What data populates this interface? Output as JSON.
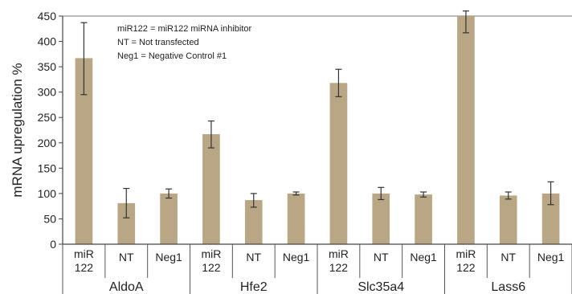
{
  "chart_data": {
    "type": "bar",
    "ylabel": "mRNA upregulation %",
    "ylim": [
      0,
      450
    ],
    "yticks": [
      0,
      50,
      100,
      150,
      200,
      250,
      300,
      350,
      400,
      450
    ],
    "legend_lines": [
      "miR122 = miR122 miRNA inhibitor",
      "NT = Not transfected",
      "Neg1 = Negative Control #1"
    ],
    "legend_position": "top-left",
    "bar_color": "#b8a684",
    "groups": [
      {
        "name": "AldoA",
        "bars": [
          {
            "label": [
              "miR",
              "122"
            ],
            "value": 367,
            "err_low": 295,
            "err_high": 437
          },
          {
            "label": [
              "NT"
            ],
            "value": 81,
            "err_low": 52,
            "err_high": 110
          },
          {
            "label": [
              "Neg1"
            ],
            "value": 100,
            "err_low": 91,
            "err_high": 109
          }
        ]
      },
      {
        "name": "Hfe2",
        "bars": [
          {
            "label": [
              "miR",
              "122"
            ],
            "value": 217,
            "err_low": 190,
            "err_high": 243
          },
          {
            "label": [
              "NT"
            ],
            "value": 87,
            "err_low": 73,
            "err_high": 100
          },
          {
            "label": [
              "Neg1"
            ],
            "value": 100,
            "err_low": 97,
            "err_high": 103
          }
        ]
      },
      {
        "name": "Slc35a4",
        "bars": [
          {
            "label": [
              "miR",
              "122"
            ],
            "value": 318,
            "err_low": 291,
            "err_high": 345
          },
          {
            "label": [
              "NT"
            ],
            "value": 100,
            "err_low": 88,
            "err_high": 112
          },
          {
            "label": [
              "Neg1"
            ],
            "value": 98,
            "err_low": 93,
            "err_high": 103
          }
        ]
      },
      {
        "name": "Lass6",
        "bars": [
          {
            "label": [
              "miR",
              "122"
            ],
            "value": 450,
            "err_low": 417,
            "err_high": 460
          },
          {
            "label": [
              "NT"
            ],
            "value": 96,
            "err_low": 89,
            "err_high": 103
          },
          {
            "label": [
              "Neg1"
            ],
            "value": 100,
            "err_low": 78,
            "err_high": 123
          }
        ]
      }
    ]
  }
}
